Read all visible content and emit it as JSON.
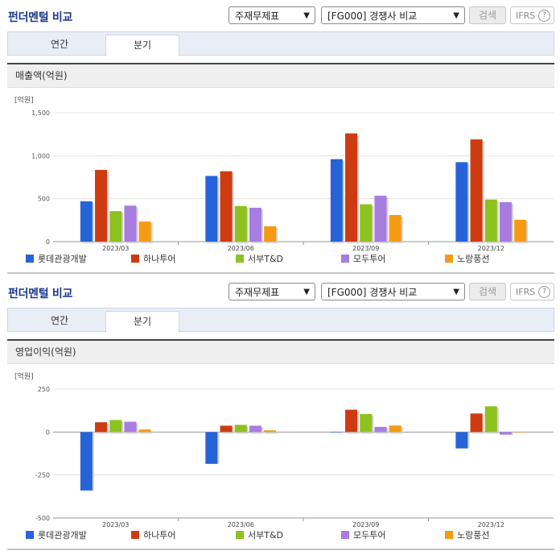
{
  "sections": [
    {
      "title": "펀더멘털 비교",
      "select_statement": "주재무제표",
      "select_compare": "[FG000] 경쟁사 비교",
      "search_label": "검색",
      "ifrs_label": "IFRS",
      "help_glyph": "?",
      "tabs": [
        "연간",
        "분기"
      ],
      "active_tab": "분기",
      "panel_title": "매출액(억원)"
    },
    {
      "title": "펀더멘털 비교",
      "select_statement": "주재무제표",
      "select_compare": "[FG000] 경쟁사 비교",
      "search_label": "검색",
      "ifrs_label": "IFRS",
      "help_glyph": "?",
      "tabs": [
        "연간",
        "분기"
      ],
      "active_tab": "분기",
      "panel_title": "영업이익(억원)"
    }
  ],
  "colors": {
    "롯데관광개발": "#2563d8",
    "하나투어": "#cf3b10",
    "서부T&D": "#8dc21f",
    "모두투어": "#a97ce0",
    "노랑풍선": "#f59b12"
  },
  "chart_data": [
    {
      "type": "bar",
      "unit_label": "[억원]",
      "categories": [
        "2023/03",
        "2023/06",
        "2023/09",
        "2023/12"
      ],
      "ylim": [
        0,
        1500
      ],
      "yticks": [
        0,
        500,
        1000,
        1500
      ],
      "ytick_labels": [
        "0",
        "500",
        "1,000",
        "1,500"
      ],
      "grid": true,
      "legend": "bottom",
      "series": [
        {
          "name": "롯데관광개발",
          "values": [
            470,
            765,
            960,
            925
          ]
        },
        {
          "name": "하나투어",
          "values": [
            835,
            820,
            1260,
            1190
          ]
        },
        {
          "name": "서부T&D",
          "values": [
            355,
            415,
            435,
            490
          ]
        },
        {
          "name": "모두투어",
          "values": [
            420,
            395,
            535,
            460
          ]
        },
        {
          "name": "노랑풍선",
          "values": [
            235,
            180,
            310,
            255
          ]
        }
      ]
    },
    {
      "type": "bar",
      "unit_label": "[억원]",
      "categories": [
        "2023/03",
        "2023/06",
        "2023/09",
        "2023/12"
      ],
      "ylim": [
        -500,
        250
      ],
      "yticks": [
        -500,
        -250,
        0,
        250
      ],
      "ytick_labels": [
        "-500",
        "-250",
        "0",
        "250"
      ],
      "grid": true,
      "legend": "bottom",
      "series": [
        {
          "name": "롯데관광개발",
          "values": [
            -340,
            -185,
            0,
            -95
          ]
        },
        {
          "name": "하나투어",
          "values": [
            57,
            37,
            130,
            108
          ]
        },
        {
          "name": "서부T&D",
          "values": [
            70,
            42,
            105,
            150
          ]
        },
        {
          "name": "모두투어",
          "values": [
            60,
            37,
            30,
            -15
          ]
        },
        {
          "name": "노랑풍선",
          "values": [
            15,
            10,
            38,
            0
          ]
        }
      ]
    }
  ]
}
